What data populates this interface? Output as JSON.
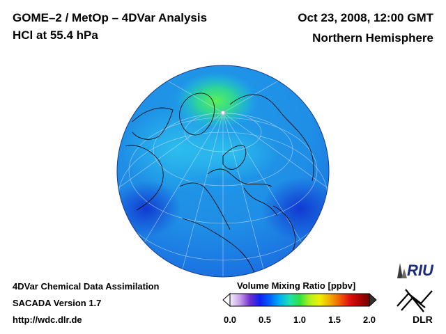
{
  "header": {
    "title": "GOME–2 / MetOp – 4DVar Analysis",
    "subtitle": "HCl at 55.4 hPa",
    "datetime": "Oct 23, 2008, 12:00 GMT",
    "region": "Northern Hemisphere"
  },
  "footer": {
    "line1": "4DVar Chemical Data Assimilation",
    "line2": "SACADA Version 1.7",
    "line3": "http://wdc.dlr.de"
  },
  "colorbar": {
    "title": "Volume Mixing Ratio [ppbv]",
    "ticks": [
      "0.0",
      "0.5",
      "1.0",
      "1.5",
      "2.0"
    ],
    "min": 0.0,
    "max": 2.0,
    "colors": [
      "#f0f0ff",
      "#c8a0e8",
      "#7030d0",
      "#1020f0",
      "#0060ff",
      "#00b0f0",
      "#20e0b0",
      "#30e040",
      "#b0f020",
      "#f0f000",
      "#f0b000",
      "#f06000",
      "#e01010",
      "#b00000",
      "#700000"
    ]
  },
  "map": {
    "projection": "orthographic",
    "hemisphere": "north",
    "background_color": "#1f8ee6",
    "high_color": "#3ff06a"
  },
  "logos": {
    "riu": "RIU",
    "dlr": "DLR"
  }
}
